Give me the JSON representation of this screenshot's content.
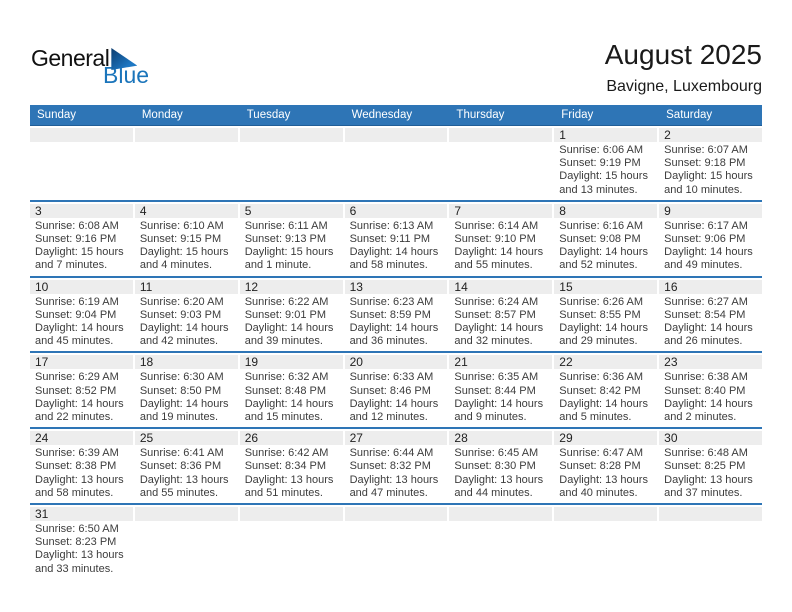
{
  "logo": {
    "line1": "General",
    "line2": "Blue"
  },
  "title": "August 2025",
  "location": "Bavigne, Luxembourg",
  "colors": {
    "header_bg": "#2E75B6",
    "week_divider": "#2E75B6",
    "day_strip_bg": "#EDEDED",
    "weekday_text": "#FFFFFF",
    "logo_blue": "#1B75BB",
    "body_text": "#3C3C3C",
    "day_number_text": "#222222",
    "title_text": "#1A1A1A"
  },
  "weekdays": [
    "Sunday",
    "Monday",
    "Tuesday",
    "Wednesday",
    "Thursday",
    "Friday",
    "Saturday"
  ],
  "weeks": [
    [
      {
        "day": "",
        "lines": []
      },
      {
        "day": "",
        "lines": []
      },
      {
        "day": "",
        "lines": []
      },
      {
        "day": "",
        "lines": []
      },
      {
        "day": "",
        "lines": []
      },
      {
        "day": "1",
        "lines": [
          "Sunrise: 6:06 AM",
          "Sunset: 9:19 PM",
          "Daylight: 15 hours",
          "and 13 minutes."
        ]
      },
      {
        "day": "2",
        "lines": [
          "Sunrise: 6:07 AM",
          "Sunset: 9:18 PM",
          "Daylight: 15 hours",
          "and 10 minutes."
        ]
      }
    ],
    [
      {
        "day": "3",
        "lines": [
          "Sunrise: 6:08 AM",
          "Sunset: 9:16 PM",
          "Daylight: 15 hours",
          "and 7 minutes."
        ]
      },
      {
        "day": "4",
        "lines": [
          "Sunrise: 6:10 AM",
          "Sunset: 9:15 PM",
          "Daylight: 15 hours",
          "and 4 minutes."
        ]
      },
      {
        "day": "5",
        "lines": [
          "Sunrise: 6:11 AM",
          "Sunset: 9:13 PM",
          "Daylight: 15 hours",
          "and 1 minute."
        ]
      },
      {
        "day": "6",
        "lines": [
          "Sunrise: 6:13 AM",
          "Sunset: 9:11 PM",
          "Daylight: 14 hours",
          "and 58 minutes."
        ]
      },
      {
        "day": "7",
        "lines": [
          "Sunrise: 6:14 AM",
          "Sunset: 9:10 PM",
          "Daylight: 14 hours",
          "and 55 minutes."
        ]
      },
      {
        "day": "8",
        "lines": [
          "Sunrise: 6:16 AM",
          "Sunset: 9:08 PM",
          "Daylight: 14 hours",
          "and 52 minutes."
        ]
      },
      {
        "day": "9",
        "lines": [
          "Sunrise: 6:17 AM",
          "Sunset: 9:06 PM",
          "Daylight: 14 hours",
          "and 49 minutes."
        ]
      }
    ],
    [
      {
        "day": "10",
        "lines": [
          "Sunrise: 6:19 AM",
          "Sunset: 9:04 PM",
          "Daylight: 14 hours",
          "and 45 minutes."
        ]
      },
      {
        "day": "11",
        "lines": [
          "Sunrise: 6:20 AM",
          "Sunset: 9:03 PM",
          "Daylight: 14 hours",
          "and 42 minutes."
        ]
      },
      {
        "day": "12",
        "lines": [
          "Sunrise: 6:22 AM",
          "Sunset: 9:01 PM",
          "Daylight: 14 hours",
          "and 39 minutes."
        ]
      },
      {
        "day": "13",
        "lines": [
          "Sunrise: 6:23 AM",
          "Sunset: 8:59 PM",
          "Daylight: 14 hours",
          "and 36 minutes."
        ]
      },
      {
        "day": "14",
        "lines": [
          "Sunrise: 6:24 AM",
          "Sunset: 8:57 PM",
          "Daylight: 14 hours",
          "and 32 minutes."
        ]
      },
      {
        "day": "15",
        "lines": [
          "Sunrise: 6:26 AM",
          "Sunset: 8:55 PM",
          "Daylight: 14 hours",
          "and 29 minutes."
        ]
      },
      {
        "day": "16",
        "lines": [
          "Sunrise: 6:27 AM",
          "Sunset: 8:54 PM",
          "Daylight: 14 hours",
          "and 26 minutes."
        ]
      }
    ],
    [
      {
        "day": "17",
        "lines": [
          "Sunrise: 6:29 AM",
          "Sunset: 8:52 PM",
          "Daylight: 14 hours",
          "and 22 minutes."
        ]
      },
      {
        "day": "18",
        "lines": [
          "Sunrise: 6:30 AM",
          "Sunset: 8:50 PM",
          "Daylight: 14 hours",
          "and 19 minutes."
        ]
      },
      {
        "day": "19",
        "lines": [
          "Sunrise: 6:32 AM",
          "Sunset: 8:48 PM",
          "Daylight: 14 hours",
          "and 15 minutes."
        ]
      },
      {
        "day": "20",
        "lines": [
          "Sunrise: 6:33 AM",
          "Sunset: 8:46 PM",
          "Daylight: 14 hours",
          "and 12 minutes."
        ]
      },
      {
        "day": "21",
        "lines": [
          "Sunrise: 6:35 AM",
          "Sunset: 8:44 PM",
          "Daylight: 14 hours",
          "and 9 minutes."
        ]
      },
      {
        "day": "22",
        "lines": [
          "Sunrise: 6:36 AM",
          "Sunset: 8:42 PM",
          "Daylight: 14 hours",
          "and 5 minutes."
        ]
      },
      {
        "day": "23",
        "lines": [
          "Sunrise: 6:38 AM",
          "Sunset: 8:40 PM",
          "Daylight: 14 hours",
          "and 2 minutes."
        ]
      }
    ],
    [
      {
        "day": "24",
        "lines": [
          "Sunrise: 6:39 AM",
          "Sunset: 8:38 PM",
          "Daylight: 13 hours",
          "and 58 minutes."
        ]
      },
      {
        "day": "25",
        "lines": [
          "Sunrise: 6:41 AM",
          "Sunset: 8:36 PM",
          "Daylight: 13 hours",
          "and 55 minutes."
        ]
      },
      {
        "day": "26",
        "lines": [
          "Sunrise: 6:42 AM",
          "Sunset: 8:34 PM",
          "Daylight: 13 hours",
          "and 51 minutes."
        ]
      },
      {
        "day": "27",
        "lines": [
          "Sunrise: 6:44 AM",
          "Sunset: 8:32 PM",
          "Daylight: 13 hours",
          "and 47 minutes."
        ]
      },
      {
        "day": "28",
        "lines": [
          "Sunrise: 6:45 AM",
          "Sunset: 8:30 PM",
          "Daylight: 13 hours",
          "and 44 minutes."
        ]
      },
      {
        "day": "29",
        "lines": [
          "Sunrise: 6:47 AM",
          "Sunset: 8:28 PM",
          "Daylight: 13 hours",
          "and 40 minutes."
        ]
      },
      {
        "day": "30",
        "lines": [
          "Sunrise: 6:48 AM",
          "Sunset: 8:25 PM",
          "Daylight: 13 hours",
          "and 37 minutes."
        ]
      }
    ],
    [
      {
        "day": "31",
        "lines": [
          "Sunrise: 6:50 AM",
          "Sunset: 8:23 PM",
          "Daylight: 13 hours",
          "and 33 minutes."
        ]
      },
      {
        "day": "",
        "lines": []
      },
      {
        "day": "",
        "lines": []
      },
      {
        "day": "",
        "lines": []
      },
      {
        "day": "",
        "lines": []
      },
      {
        "day": "",
        "lines": []
      },
      {
        "day": "",
        "lines": []
      }
    ]
  ]
}
